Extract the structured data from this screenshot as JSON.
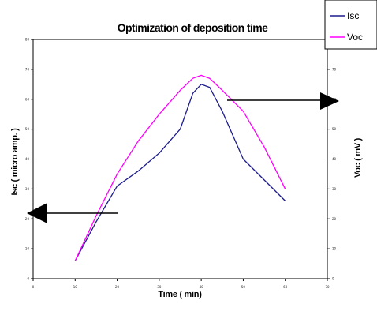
{
  "chart_data": {
    "type": "line",
    "title": "Optimization of deposition time",
    "xlabel": "Time ( min)",
    "ylabel_left": "Isc ( micro amp. )",
    "ylabel_right": "Voc ( mV )",
    "xlim": [
      0,
      70
    ],
    "ylim_left": [
      0,
      80
    ],
    "ylim_right": [
      0,
      80
    ],
    "x_ticks": [
      "0",
      "10",
      "20",
      "30",
      "40",
      "50",
      "60",
      "70"
    ],
    "y_ticks_left": [
      "0",
      "10",
      "20",
      "30",
      "40",
      "50",
      "60",
      "70",
      "80"
    ],
    "y_ticks_right": [
      "0",
      "10",
      "20",
      "30",
      "40",
      "50",
      "60",
      "70",
      "80"
    ],
    "grid": false,
    "legend_position": "top-right",
    "series": [
      {
        "name": "Isc",
        "color": "#1c1c8c",
        "axis": "left",
        "x": [
          10,
          15,
          20,
          25,
          30,
          35,
          38,
          40,
          42,
          45,
          50,
          55,
          60
        ],
        "values": [
          6,
          19,
          31,
          36,
          42,
          50,
          62,
          65,
          64,
          56,
          40,
          33,
          26
        ]
      },
      {
        "name": "Voc",
        "color": "#ff00ff",
        "axis": "right",
        "x": [
          10,
          15,
          20,
          25,
          30,
          35,
          38,
          40,
          42,
          45,
          50,
          55,
          60
        ],
        "values": [
          6,
          21,
          35,
          46,
          55,
          63,
          67,
          68,
          67,
          63,
          56,
          44,
          30
        ]
      }
    ]
  }
}
